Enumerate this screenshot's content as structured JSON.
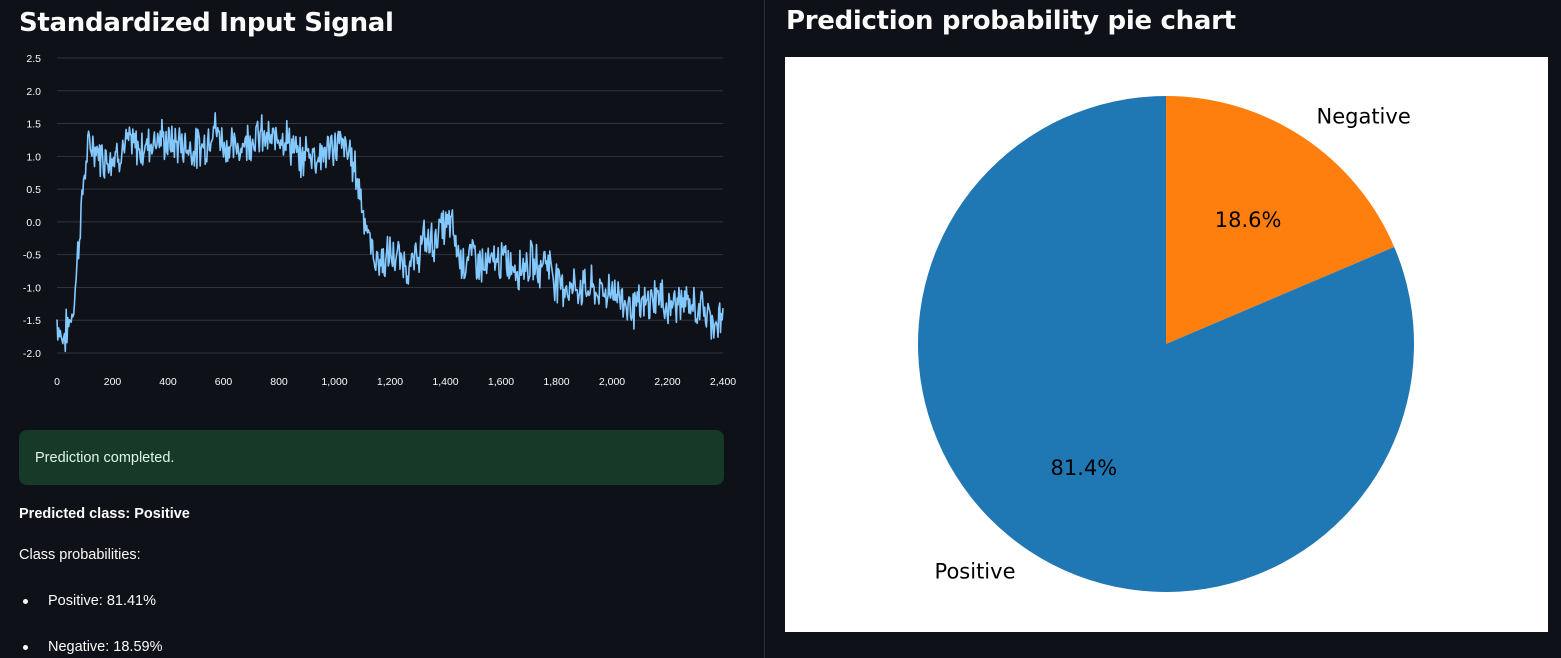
{
  "left_panel": {
    "title": "Standardized Input Signal",
    "alert": {
      "text": "Prediction completed."
    },
    "predicted_class_text": "Predicted class: Positive",
    "probabilities_heading": "Class probabilities:",
    "probability_items": [
      "Positive: 81.41%",
      "Negative: 18.59%"
    ]
  },
  "right_panel": {
    "title": "Prediction probability pie chart"
  },
  "colors": {
    "background": "#0e1117",
    "line": "#83c9ff",
    "gridline": "#31333f",
    "success_bg": "#173928",
    "success_text": "#dff5e3",
    "pie_positive": "#1f77b4",
    "pie_negative": "#ff7f0e"
  },
  "chart_data": [
    {
      "type": "line",
      "title": "",
      "xlabel": "",
      "ylabel": "",
      "xlim": [
        0,
        2400
      ],
      "ylim": [
        -2.0,
        2.5
      ],
      "grid": true,
      "x_ticks": [
        0,
        200,
        400,
        600,
        800,
        1000,
        1200,
        1400,
        1600,
        1800,
        2000,
        2200,
        2400
      ],
      "x_tick_labels": [
        "0",
        "200",
        "400",
        "600",
        "800",
        "1,000",
        "1,200",
        "1,400",
        "1,600",
        "1,800",
        "2,000",
        "2,200",
        "2,400"
      ],
      "y_ticks": [
        -2.0,
        -1.5,
        -1.0,
        -0.5,
        0.0,
        0.5,
        1.0,
        1.5,
        2.0,
        2.5
      ],
      "y_tick_labels": [
        "-2.0",
        "-1.5",
        "-1.0",
        "-0.5",
        "0.0",
        "0.5",
        "1.0",
        "1.5",
        "2.0",
        "2.5"
      ],
      "series": [
        {
          "x": [
            0,
            20,
            40,
            60,
            80,
            100,
            120,
            160,
            200,
            260,
            300,
            360,
            400,
            440,
            500,
            540,
            560,
            600,
            640,
            700,
            740,
            780,
            800,
            840,
            880,
            900,
            940,
            980,
            1020,
            1060,
            1080,
            1100,
            1120,
            1140,
            1160,
            1180,
            1200,
            1240,
            1280,
            1320,
            1360,
            1380,
            1400,
            1420,
            1440,
            1460,
            1500,
            1540,
            1580,
            1620,
            1660,
            1700,
            1740,
            1760,
            1800,
            1840,
            1880,
            1920,
            1960,
            2000,
            2040,
            2080,
            2120,
            2160,
            2200,
            2240,
            2280,
            2320,
            2360,
            2400
          ],
          "values": [
            -1.5,
            -1.8,
            -1.6,
            -1.3,
            -0.2,
            0.8,
            1.2,
            1.0,
            1.0,
            1.2,
            1.1,
            1.3,
            1.2,
            1.2,
            1.1,
            1.2,
            1.5,
            1.2,
            1.1,
            1.3,
            1.3,
            1.2,
            1.4,
            1.2,
            0.9,
            1.1,
            1.0,
            1.1,
            1.2,
            1.0,
            0.7,
            0.3,
            -0.2,
            -0.5,
            -0.6,
            -0.6,
            -0.5,
            -0.6,
            -0.7,
            -0.3,
            -0.3,
            -0.1,
            -0.1,
            0.0,
            -0.4,
            -0.6,
            -0.5,
            -0.7,
            -0.6,
            -0.6,
            -0.7,
            -0.6,
            -0.7,
            -0.5,
            -0.9,
            -1.0,
            -1.0,
            -1.0,
            -1.1,
            -1.0,
            -1.2,
            -1.3,
            -1.3,
            -1.1,
            -1.3,
            -1.2,
            -1.3,
            -1.3,
            -1.5,
            -1.5
          ]
        }
      ]
    },
    {
      "type": "pie",
      "title": "",
      "labels": [
        "Negative",
        "Positive"
      ],
      "values": [
        18.6,
        81.4
      ],
      "data_labels": [
        "18.6%",
        "81.4%"
      ],
      "colors": [
        "#ff7f0e",
        "#1f77b4"
      ],
      "start_angle_deg": 90,
      "direction": "clockwise"
    }
  ]
}
